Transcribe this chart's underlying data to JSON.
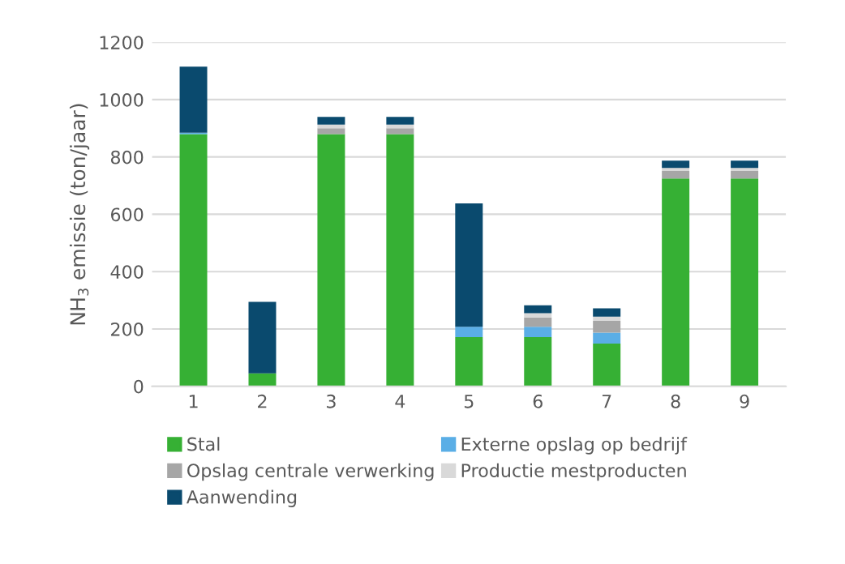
{
  "chart_data": {
    "type": "bar",
    "stacked": true,
    "ylabel": "NH$_{3}$ emissie (ton/jaar)",
    "categories": [
      "1",
      "2",
      "3",
      "4",
      "5",
      "6",
      "7",
      "8",
      "9"
    ],
    "series": [
      {
        "name": "Stal",
        "color": "#36b034",
        "values": [
          880,
          45,
          880,
          880,
          172,
          172,
          149,
          725,
          725
        ]
      },
      {
        "name": "Externe opslag op bedrijf",
        "color": "#5aaee6",
        "values": [
          5,
          null,
          null,
          null,
          36,
          36,
          38,
          null,
          null
        ]
      },
      {
        "name": "Opslag centrale verwerking",
        "color": "#a6a6a6",
        "values": [
          null,
          null,
          20,
          20,
          null,
          32,
          41,
          26,
          26
        ]
      },
      {
        "name": "Productie mestproducten",
        "color": "#d9d9d9",
        "values": [
          null,
          null,
          13,
          13,
          null,
          15,
          15,
          11,
          11
        ]
      },
      {
        "name": "Aanwending",
        "color": "#0a4a6e",
        "values": [
          230,
          250,
          27,
          27,
          430,
          28,
          29,
          25,
          25
        ]
      }
    ],
    "ylim": [
      0,
      1200
    ],
    "yticks": [
      0,
      200,
      400,
      600,
      800,
      1000,
      1200
    ],
    "grid": "y",
    "legend": "bottom"
  }
}
